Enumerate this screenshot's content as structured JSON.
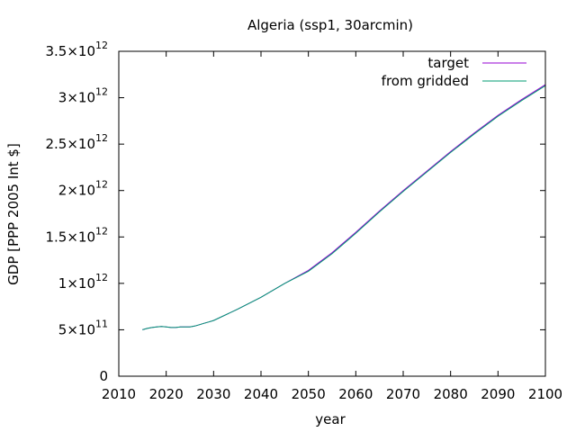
{
  "chart_data": {
    "type": "line",
    "title": "Algeria (ssp1, 30arcmin)",
    "xlabel": "year",
    "ylabel": "GDP [PPP 2005 Int $]",
    "xlim": [
      2010,
      2100
    ],
    "ylim": [
      0,
      3500000000000.0
    ],
    "x_ticks": [
      2010,
      2020,
      2030,
      2040,
      2050,
      2060,
      2070,
      2080,
      2090,
      2100
    ],
    "x_tick_labels": [
      "2010",
      "2020",
      "2030",
      "2040",
      "2050",
      "2060",
      "2070",
      "2080",
      "2090",
      "2100"
    ],
    "y_ticks": [
      {
        "value": 0,
        "mantissa": "0",
        "exp": ""
      },
      {
        "value": 500000000000.0,
        "mantissa": "5×10",
        "exp": "11"
      },
      {
        "value": 1000000000000.0,
        "mantissa": "1×10",
        "exp": "12"
      },
      {
        "value": 1500000000000.0,
        "mantissa": "1.5×10",
        "exp": "12"
      },
      {
        "value": 2000000000000.0,
        "mantissa": "2×10",
        "exp": "12"
      },
      {
        "value": 2500000000000.0,
        "mantissa": "2.5×10",
        "exp": "12"
      },
      {
        "value": 3000000000000.0,
        "mantissa": "3×10",
        "exp": "12"
      },
      {
        "value": 3500000000000.0,
        "mantissa": "3.5×10",
        "exp": "12"
      }
    ],
    "grid": false,
    "legend_position": "top-right",
    "series": [
      {
        "name": "target",
        "color": "#9400d3",
        "x": [
          2015,
          2016,
          2017,
          2018,
          2019,
          2020,
          2021,
          2022,
          2023,
          2024,
          2025,
          2026,
          2027,
          2028,
          2029,
          2030,
          2035,
          2040,
          2045,
          2050,
          2055,
          2060,
          2065,
          2070,
          2075,
          2080,
          2085,
          2090,
          2095,
          2100
        ],
        "values": [
          500000000000.0,
          515000000000.0,
          525000000000.0,
          530000000000.0,
          535000000000.0,
          530000000000.0,
          525000000000.0,
          525000000000.0,
          530000000000.0,
          530000000000.0,
          530000000000.0,
          540000000000.0,
          555000000000.0,
          570000000000.0,
          585000000000.0,
          600000000000.0,
          720000000000.0,
          850000000000.0,
          1000000000000.0,
          1140000000000.0,
          1330000000000.0,
          1550000000000.0,
          1780000000000.0,
          2000000000000.0,
          2210000000000.0,
          2420000000000.0,
          2620000000000.0,
          2810000000000.0,
          2980000000000.0,
          3140000000000.0
        ]
      },
      {
        "name": "from gridded",
        "color": "#009e73",
        "x": [
          2015,
          2016,
          2017,
          2018,
          2019,
          2020,
          2021,
          2022,
          2023,
          2024,
          2025,
          2026,
          2027,
          2028,
          2029,
          2030,
          2035,
          2040,
          2045,
          2050,
          2055,
          2060,
          2065,
          2070,
          2075,
          2080,
          2085,
          2090,
          2095,
          2100
        ],
        "values": [
          500000000000.0,
          515000000000.0,
          525000000000.0,
          530000000000.0,
          535000000000.0,
          530000000000.0,
          525000000000.0,
          525000000000.0,
          530000000000.0,
          530000000000.0,
          530000000000.0,
          540000000000.0,
          555000000000.0,
          570000000000.0,
          585000000000.0,
          600000000000.0,
          720000000000.0,
          850000000000.0,
          1000000000000.0,
          1130000000000.0,
          1320000000000.0,
          1540000000000.0,
          1770000000000.0,
          1990000000000.0,
          2200000000000.0,
          2410000000000.0,
          2610000000000.0,
          2800000000000.0,
          2970000000000.0,
          3130000000000.0
        ]
      }
    ]
  }
}
